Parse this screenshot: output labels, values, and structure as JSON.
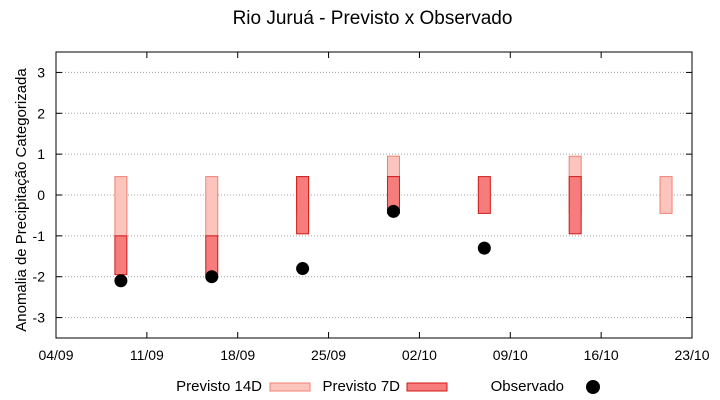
{
  "chart_data": {
    "type": "floating-bar",
    "title": "Rio Juruá - Previsto x Observado",
    "ylabel": "Anomalia de Precipitação Categorizada",
    "xlabel": "",
    "ylim": [
      -3.5,
      3.5
    ],
    "yticks": [
      -3,
      -2,
      -1,
      0,
      1,
      2,
      3
    ],
    "ytick_labels": [
      "-3",
      "-2",
      "-1",
      "0",
      "1",
      "2",
      "3"
    ],
    "xlim": [
      "2024-09-04",
      "2024-10-23"
    ],
    "xticks": [
      "2024-09-04",
      "2024-09-11",
      "2024-09-18",
      "2024-09-25",
      "2024-10-02",
      "2024-10-09",
      "2024-10-16",
      "2024-10-23"
    ],
    "xtick_labels": [
      "04/09",
      "11/09",
      "18/09",
      "25/09",
      "02/10",
      "09/10",
      "16/10",
      "23/10"
    ],
    "grid": "horizontal-dotted",
    "legend_position": "bottom",
    "colors": {
      "previsto_14d_fill": "#fbc5be",
      "previsto_14d_edge": "#f08070",
      "previsto_7d_fill": "#f77c7c",
      "previsto_7d_edge": "#d01818",
      "observado": "#000000",
      "grid": "#a0a0a0"
    },
    "series": [
      {
        "name": "Previsto 14D",
        "kind": "range",
        "points": [
          {
            "x": "2024-09-09",
            "low": -1.0,
            "high": 0.45
          },
          {
            "x": "2024-09-16",
            "low": -1.0,
            "high": 0.45
          },
          {
            "x": "2024-09-23",
            "low": -0.45,
            "high": 0.45
          },
          {
            "x": "2024-09-30",
            "low": 0.45,
            "high": 0.95
          },
          {
            "x": "2024-10-14",
            "low": -0.45,
            "high": 0.95
          },
          {
            "x": "2024-10-21",
            "low": -0.45,
            "high": 0.45
          }
        ]
      },
      {
        "name": "Previsto 7D",
        "kind": "range",
        "points": [
          {
            "x": "2024-09-09",
            "low": -1.95,
            "high": -1.0
          },
          {
            "x": "2024-09-16",
            "low": -1.95,
            "high": -1.0
          },
          {
            "x": "2024-09-23",
            "low": -0.95,
            "high": 0.45
          },
          {
            "x": "2024-09-30",
            "low": -0.45,
            "high": 0.45
          },
          {
            "x": "2024-10-07",
            "low": -0.45,
            "high": 0.45
          },
          {
            "x": "2024-10-14",
            "low": -0.95,
            "high": 0.45
          }
        ]
      },
      {
        "name": "Observado",
        "kind": "point",
        "points": [
          {
            "x": "2024-09-09",
            "y": -2.1
          },
          {
            "x": "2024-09-16",
            "y": -2.0
          },
          {
            "x": "2024-09-23",
            "y": -1.8
          },
          {
            "x": "2024-09-30",
            "y": -0.4
          },
          {
            "x": "2024-10-07",
            "y": -1.3
          }
        ]
      }
    ]
  }
}
